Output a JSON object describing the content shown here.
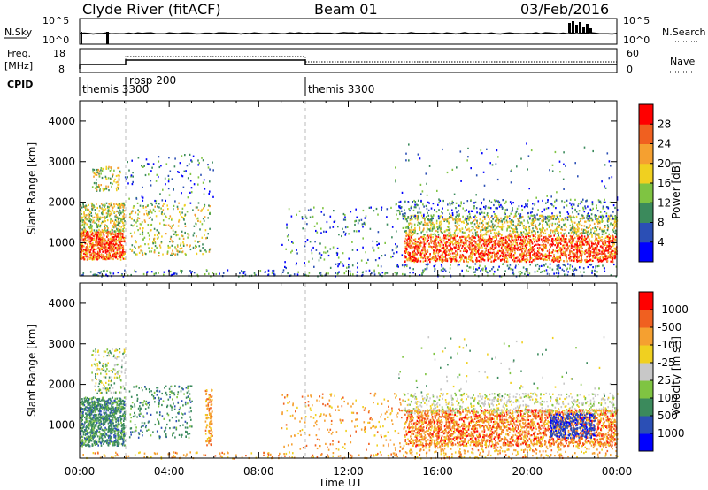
{
  "header": {
    "station": "Clyde River (fitACF)",
    "beam": "Beam 01",
    "date": "03/Feb/2016"
  },
  "top_panels": {
    "nsky_label": "N.Sky",
    "nsky_ticks": [
      "10^5",
      "10^0"
    ],
    "nsearch_label": "N.Search",
    "nsearch_ticks": [
      "10^5",
      "10^0"
    ],
    "freq_label_1": "Freq.",
    "freq_label_2": "[MHz]",
    "freq_ticks": [
      "18",
      "8"
    ],
    "nave_label": "Nave",
    "nave_ticks": [
      "60",
      "0"
    ],
    "cpid_label": "CPID",
    "cpid_segments": [
      "themis 3300",
      "rbsp 200",
      "themis 3300"
    ]
  },
  "chart_data": [
    {
      "type": "heatmap",
      "title": "",
      "xlabel": "Time UT",
      "ylabel": "Slant Range [km]",
      "xlim": [
        0,
        24
      ],
      "ylim": [
        180,
        4500
      ],
      "x_ticks": [
        "00:00",
        "04:00",
        "08:00",
        "12:00",
        "16:00",
        "20:00",
        "00:00"
      ],
      "y_ticks": [
        "1000",
        "2000",
        "3000",
        "4000"
      ],
      "colorbar": {
        "label": "Power [dB]",
        "ticks": [
          "4",
          "8",
          "12",
          "16",
          "20",
          "24",
          "28"
        ],
        "colors": [
          "#0000ff",
          "#2b4fb5",
          "#3b8a5c",
          "#7fc442",
          "#f0d020",
          "#f5a030",
          "#f06020",
          "#ff0000"
        ]
      }
    },
    {
      "type": "heatmap",
      "title": "",
      "xlabel": "Time UT",
      "ylabel": "Slant Range [km]",
      "xlim": [
        0,
        24
      ],
      "ylim": [
        180,
        4500
      ],
      "x_ticks": [
        "00:00",
        "04:00",
        "08:00",
        "12:00",
        "16:00",
        "20:00",
        "00:00"
      ],
      "y_ticks": [
        "1000",
        "2000",
        "3000",
        "4000"
      ],
      "colorbar": {
        "label_main": "Velocity  [m s",
        "label_exp": "-1",
        "label_end": "]",
        "ticks": [
          "1000",
          "500",
          "100",
          "25",
          "-25",
          "-100",
          "-500",
          "-1000"
        ],
        "colors": [
          "#0000ff",
          "#2b4fb5",
          "#3b8a5c",
          "#7fc442",
          "#c8c8c8",
          "#f0d020",
          "#f5a030",
          "#f06020",
          "#ff0000"
        ]
      }
    }
  ]
}
